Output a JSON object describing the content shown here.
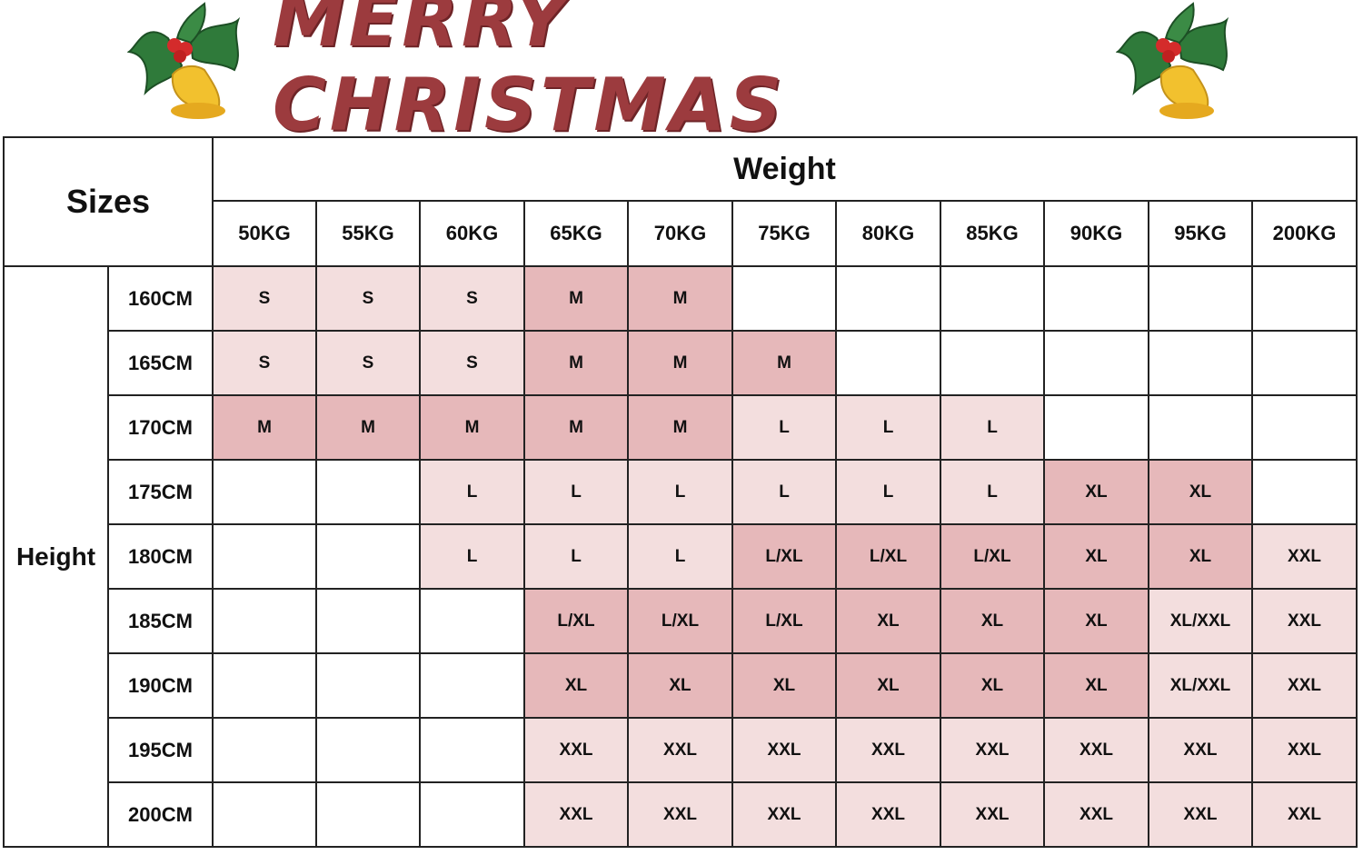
{
  "banner": {
    "title": "MERRY CHRISTMAS",
    "decoration_icon": "holly-bell-icon"
  },
  "table": {
    "sizes_label": "Sizes",
    "weight_label": "Weight",
    "height_label": "Height",
    "weights": [
      "50KG",
      "55KG",
      "60KG",
      "65KG",
      "70KG",
      "75KG",
      "80KG",
      "85KG",
      "90KG",
      "95KG",
      "200KG"
    ],
    "rows": [
      {
        "height": "160CM",
        "cells": [
          "S",
          "S",
          "S",
          "M",
          "M",
          "",
          "",
          "",
          "",
          "",
          ""
        ]
      },
      {
        "height": "165CM",
        "cells": [
          "S",
          "S",
          "S",
          "M",
          "M",
          "M",
          "",
          "",
          "",
          "",
          ""
        ]
      },
      {
        "height": "170CM",
        "cells": [
          "M",
          "M",
          "M",
          "M",
          "M",
          "L",
          "L",
          "L",
          "",
          "",
          ""
        ]
      },
      {
        "height": "175CM",
        "cells": [
          "",
          "",
          "L",
          "L",
          "L",
          "L",
          "L",
          "L",
          "XL",
          "XL",
          ""
        ]
      },
      {
        "height": "180CM",
        "cells": [
          "",
          "",
          "L",
          "L",
          "L",
          "L/XL",
          "L/XL",
          "L/XL",
          "XL",
          "XL",
          "XXL"
        ]
      },
      {
        "height": "185CM",
        "cells": [
          "",
          "",
          "",
          "L/XL",
          "L/XL",
          "L/XL",
          "XL",
          "XL",
          "XL",
          "XL/XXL",
          "XXL"
        ]
      },
      {
        "height": "190CM",
        "cells": [
          "",
          "",
          "",
          "XL",
          "XL",
          "XL",
          "XL",
          "XL",
          "XL",
          "XL/XXL",
          "XXL"
        ]
      },
      {
        "height": "195CM",
        "cells": [
          "",
          "",
          "",
          "XXL",
          "XXL",
          "XXL",
          "XXL",
          "XXL",
          "XXL",
          "XXL",
          "XXL"
        ]
      },
      {
        "height": "200CM",
        "cells": [
          "",
          "",
          "",
          "XXL",
          "XXL",
          "XXL",
          "XXL",
          "XXL",
          "XXL",
          "XXL",
          "XXL"
        ]
      }
    ],
    "shading": [
      [
        "light",
        "light",
        "light",
        "dark",
        "dark",
        "none",
        "none",
        "none",
        "none",
        "none",
        "none"
      ],
      [
        "light",
        "light",
        "light",
        "dark",
        "dark",
        "dark",
        "none",
        "none",
        "none",
        "none",
        "none"
      ],
      [
        "dark",
        "dark",
        "dark",
        "dark",
        "dark",
        "light",
        "light",
        "light",
        "none",
        "none",
        "none"
      ],
      [
        "none",
        "none",
        "light",
        "light",
        "light",
        "light",
        "light",
        "light",
        "dark",
        "dark",
        "none"
      ],
      [
        "none",
        "none",
        "light",
        "light",
        "light",
        "dark",
        "dark",
        "dark",
        "dark",
        "dark",
        "light"
      ],
      [
        "none",
        "none",
        "none",
        "dark",
        "dark",
        "dark",
        "dark",
        "dark",
        "dark",
        "light",
        "light"
      ],
      [
        "none",
        "none",
        "none",
        "dark",
        "dark",
        "dark",
        "dark",
        "dark",
        "dark",
        "light",
        "light"
      ],
      [
        "none",
        "none",
        "none",
        "light",
        "light",
        "light",
        "light",
        "light",
        "light",
        "light",
        "light"
      ],
      [
        "none",
        "none",
        "none",
        "light",
        "light",
        "light",
        "light",
        "light",
        "light",
        "light",
        "light"
      ]
    ],
    "colors": {
      "light": "#f3dede",
      "dark": "#e6b8ba",
      "none": "#ffffff",
      "title": "#9c3b3e"
    }
  }
}
